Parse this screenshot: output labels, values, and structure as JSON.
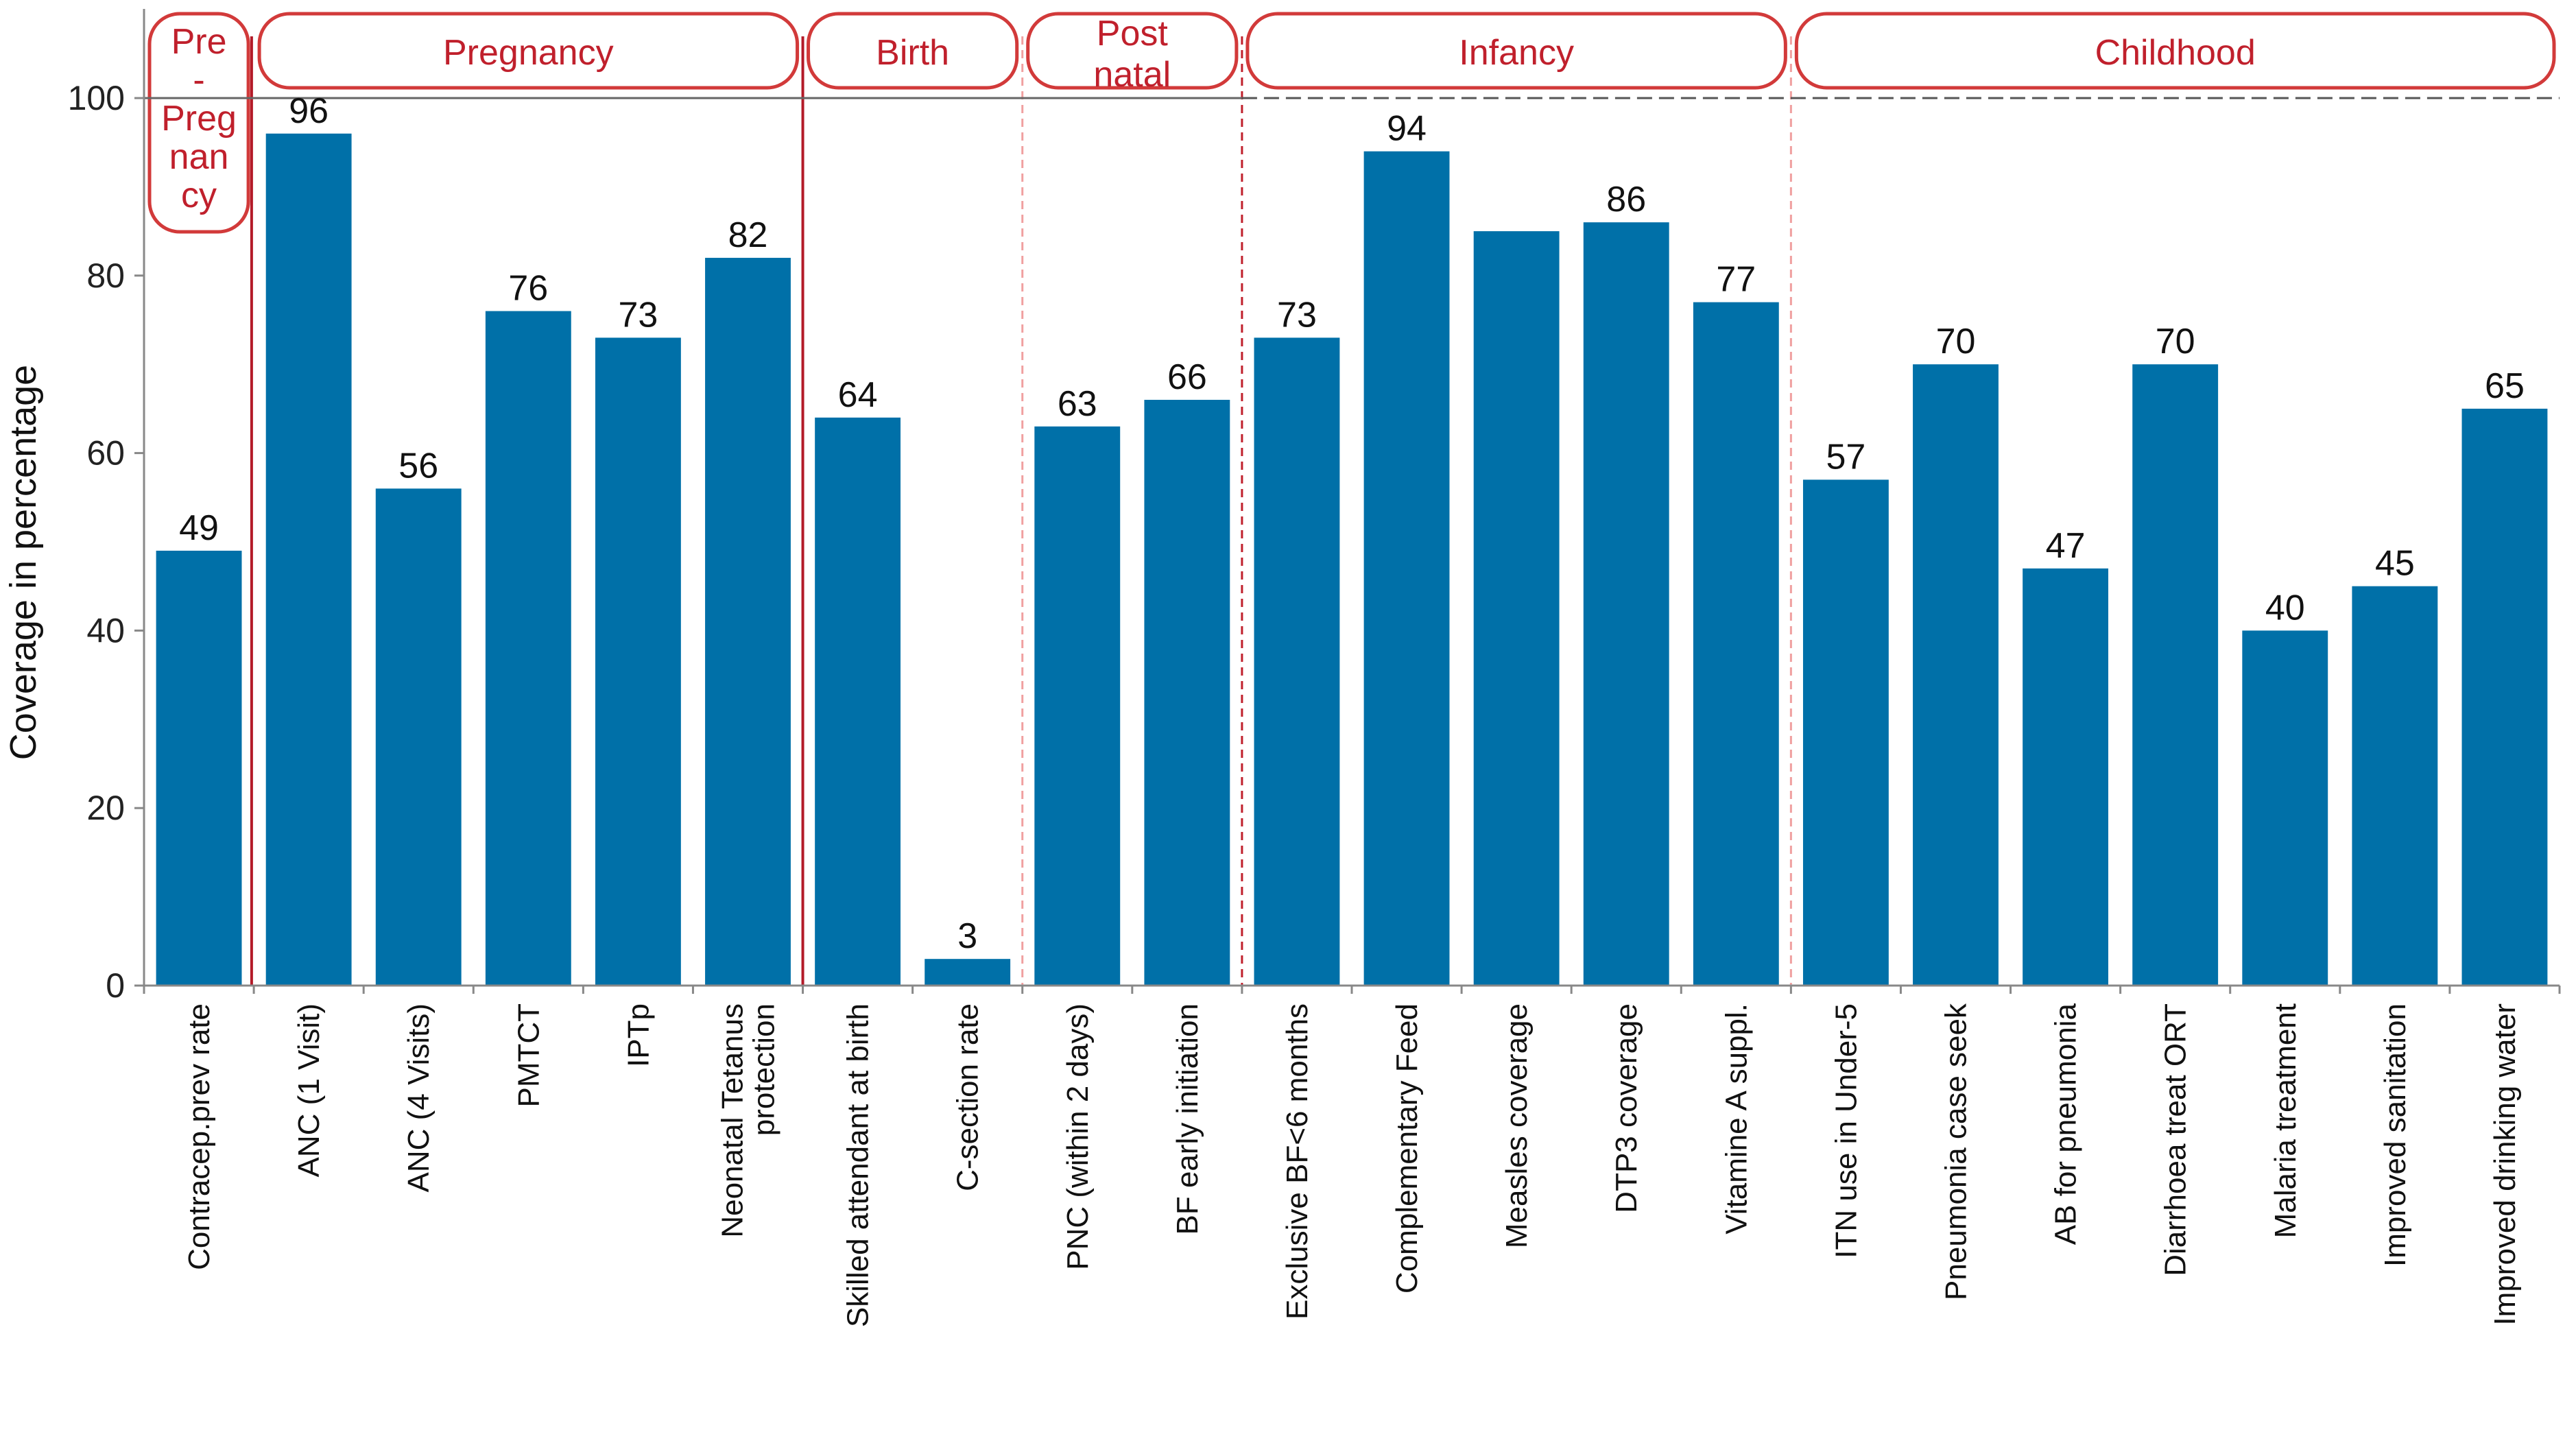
{
  "chart_data": {
    "type": "bar",
    "ylabel": "Coverage in percentage",
    "xlabel": "",
    "ylim": [
      0,
      100
    ],
    "yticks": [
      0,
      20,
      40,
      60,
      80,
      100
    ],
    "grid": false,
    "bar_color": "#0070a8",
    "accent_color": "#c0202c",
    "categories": [
      {
        "label": "Contracep.prev rate",
        "lines": [
          "Contracep.prev rate"
        ]
      },
      {
        "label": "ANC (1 Visit)",
        "lines": [
          "ANC (1 Visit)"
        ]
      },
      {
        "label": "ANC (4 Visits)",
        "lines": [
          "ANC (4 Visits)"
        ]
      },
      {
        "label": "PMTCT",
        "lines": [
          "PMTCT"
        ]
      },
      {
        "label": "IPTp",
        "lines": [
          "IPTp"
        ]
      },
      {
        "label": "Neonatal Tetanus protection",
        "lines": [
          "Neonatal Tetanus",
          "protection"
        ]
      },
      {
        "label": "Skilled attendant at birth",
        "lines": [
          "Skilled attendant at birth"
        ]
      },
      {
        "label": "C-section rate",
        "lines": [
          "C-section rate"
        ]
      },
      {
        "label": "PNC (within 2 days)",
        "lines": [
          "PNC (within 2 days)"
        ]
      },
      {
        "label": "BF early initiation",
        "lines": [
          "BF early initiation"
        ]
      },
      {
        "label": "Exclusive BF<6 months",
        "lines": [
          "Exclusive BF<6 months"
        ]
      },
      {
        "label": "Complementary Feed",
        "lines": [
          "Complementary Feed"
        ]
      },
      {
        "label": "Measles coverage",
        "lines": [
          "Measles coverage"
        ]
      },
      {
        "label": "DTP3 coverage",
        "lines": [
          "DTP3 coverage"
        ]
      },
      {
        "label": "Vitamine A suppl.",
        "lines": [
          "Vitamine A suppl."
        ]
      },
      {
        "label": "ITN use in Under-5",
        "lines": [
          "ITN use in Under-5"
        ]
      },
      {
        "label": "Pneumonia case seek",
        "lines": [
          "Pneumonia case seek"
        ]
      },
      {
        "label": "AB for pneumonia",
        "lines": [
          "AB for pneumonia"
        ]
      },
      {
        "label": "Diarrhoea treat ORT",
        "lines": [
          "Diarrhoea treat ORT"
        ]
      },
      {
        "label": "Malaria treatment",
        "lines": [
          "Malaria treatment"
        ]
      },
      {
        "label": "Improved sanitation",
        "lines": [
          "Improved sanitation"
        ]
      },
      {
        "label": "Improved drinking water",
        "lines": [
          "Improved drinking water"
        ]
      }
    ],
    "values": [
      49,
      96,
      56,
      76,
      73,
      82,
      64,
      3,
      63,
      66,
      73,
      94,
      85,
      86,
      77,
      57,
      70,
      47,
      70,
      40,
      45,
      65
    ],
    "data_labels": [
      "49",
      "96",
      "56",
      "76",
      "73",
      "82",
      "64",
      "3",
      "63",
      "66",
      "73",
      "94",
      "",
      "86",
      "77",
      "57",
      "70",
      "47",
      "70",
      "40",
      "45",
      "65"
    ],
    "phases": [
      {
        "name": "Pre-Pregnancy",
        "lines": [
          "Pre",
          "-",
          "Preg",
          "nan",
          "cy"
        ],
        "start": 0,
        "end": 0
      },
      {
        "name": "Pregnancy",
        "lines": [
          "Pregnancy"
        ],
        "start": 1,
        "end": 5
      },
      {
        "name": "Birth",
        "lines": [
          "Birth"
        ],
        "start": 6,
        "end": 7
      },
      {
        "name": "Post natal",
        "lines": [
          "Post",
          "natal"
        ],
        "start": 8,
        "end": 9
      },
      {
        "name": "Infancy",
        "lines": [
          "Infancy"
        ],
        "start": 10,
        "end": 14
      },
      {
        "name": "Childhood",
        "lines": [
          "Childhood"
        ],
        "start": 15,
        "end": 21
      }
    ],
    "separators": [
      {
        "after": 0,
        "style": "solid"
      },
      {
        "after": 5,
        "style": "solid"
      },
      {
        "after": 7,
        "style": "dashed-light"
      },
      {
        "after": 9,
        "style": "dashed"
      },
      {
        "after": 14,
        "style": "dashed-light"
      }
    ]
  }
}
